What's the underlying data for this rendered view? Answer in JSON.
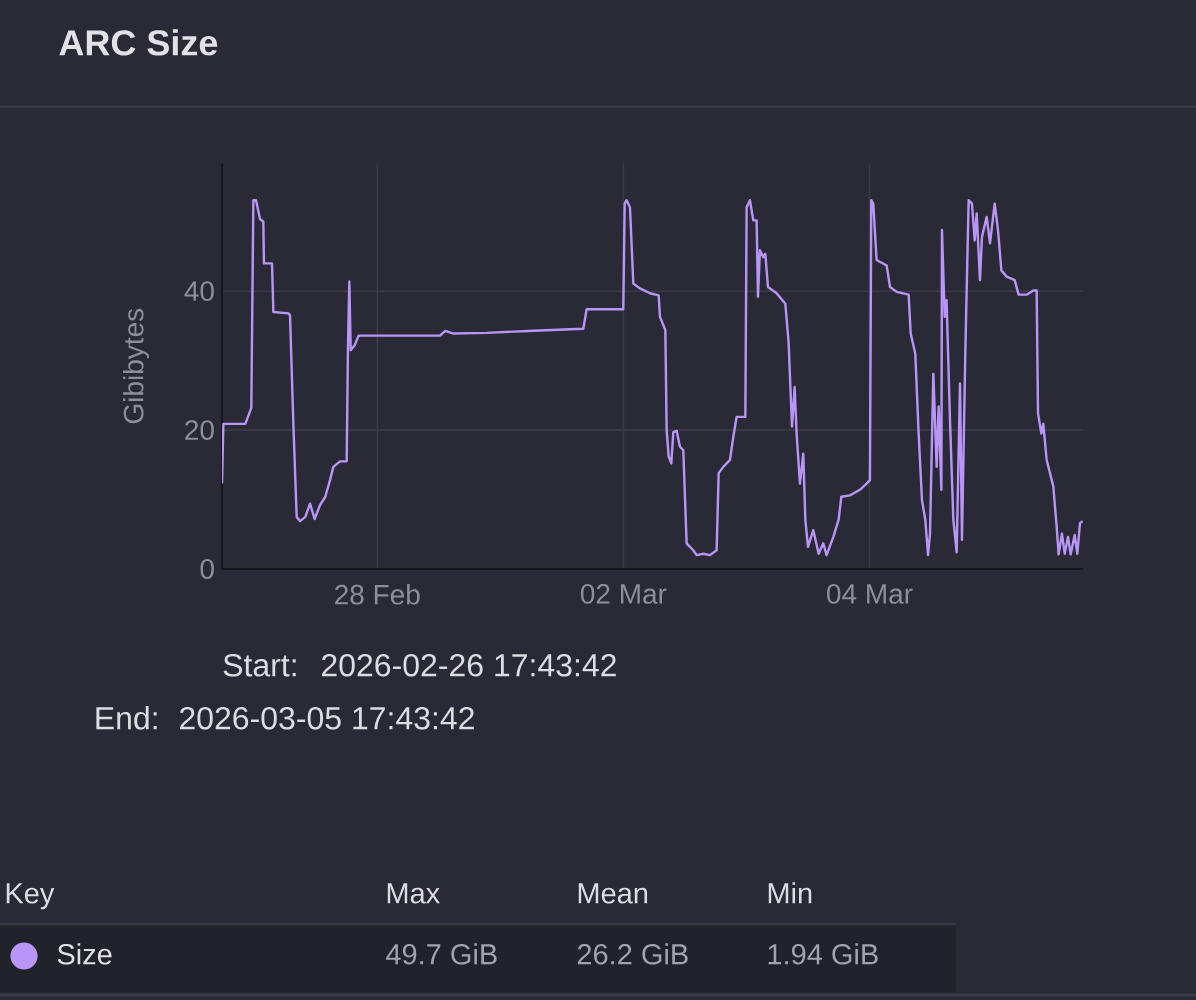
{
  "chart_data": {
    "type": "line",
    "title": "ARC Size",
    "ylabel": "Gibibytes",
    "legend_title": "Key",
    "legend": "bottom",
    "grid": true,
    "xlim": [
      "2026-02-26T17:43",
      "2026-03-05T17:43"
    ],
    "xticks": [
      {
        "value": "2026-02-28",
        "label": "28 Feb"
      },
      {
        "value": "2026-03-02",
        "label": "02 Mar"
      },
      {
        "value": "2026-03-04",
        "label": "04 Mar"
      }
    ],
    "ylim": [
      0,
      58.4
    ],
    "yticks": [
      0,
      20,
      40
    ],
    "annotations": [
      "Start:",
      "2026-02-26 17:43:42",
      "End:",
      "2026-03-05 17:43:42",
      "Max",
      "Mean",
      "Min",
      "49.7 GiB",
      "26.2 GiB",
      "1.94 GiB"
    ],
    "x": [
      "2026-02-26T17:43",
      "2026-02-26T17:59",
      "2026-02-26T22:16",
      "2026-02-26T23:26",
      "2026-02-26T23:50",
      "2026-02-27T00:21",
      "2026-02-27T01:08",
      "2026-02-27T01:47",
      "2026-02-27T01:54",
      "2026-02-27T03:28",
      "2026-02-27T03:44",
      "2026-02-27T06:43",
      "2026-02-27T06:59",
      "2026-02-27T07:38",
      "2026-02-27T08:17",
      "2026-02-27T08:56",
      "2026-02-27T09:58",
      "2026-02-27T10:53",
      "2026-02-27T11:47",
      "2026-02-27T12:50",
      "2026-02-27T13:52",
      "2026-02-27T14:47",
      "2026-02-27T15:26",
      "2026-02-27T16:44",
      "2026-02-27T18:02",
      "2026-02-27T18:17",
      "2026-02-27T18:33",
      "2026-02-27T18:49",
      "2026-02-27T19:35",
      "2026-02-27T20:22",
      "2026-02-28T12:14",
      "2026-02-28T13:16",
      "2026-02-28T14:50",
      "2026-02-28T21:20",
      "2026-03-01T06:26",
      "2026-03-01T16:11",
      "2026-03-01T16:50",
      "2026-03-01T23:59",
      "2026-03-02T00:15",
      "2026-03-02T00:38",
      "2026-03-02T01:17",
      "2026-03-02T01:41",
      "2026-03-02T01:56",
      "2026-03-02T03:14",
      "2026-03-02T05:11",
      "2026-03-02T06:53",
      "2026-03-02T07:08",
      "2026-03-02T08:11",
      "2026-03-02T08:26",
      "2026-03-02T08:50",
      "2026-03-02T09:21",
      "2026-03-02T09:44",
      "2026-03-02T10:23",
      "2026-03-02T11:02",
      "2026-03-02T11:41",
      "2026-03-02T12:20",
      "2026-03-02T13:38",
      "2026-03-02T14:17",
      "2026-03-02T15:35",
      "2026-03-02T16:53",
      "2026-03-02T18:11",
      "2026-03-02T18:35",
      "2026-03-02T19:29",
      "2026-03-02T20:47",
      "2026-03-02T21:26",
      "2026-03-02T22:05",
      "2026-03-02T23:47",
      "2026-03-03T00:02",
      "2026-03-03T00:41",
      "2026-03-03T01:20",
      "2026-03-03T01:59",
      "2026-03-03T02:15",
      "2026-03-03T02:38",
      "2026-03-03T03:17",
      "2026-03-03T03:41",
      "2026-03-03T04:12",
      "2026-03-03T05:53",
      "2026-03-03T07:35",
      "2026-03-03T08:14",
      "2026-03-03T08:53",
      "2026-03-03T09:24",
      "2026-03-03T09:47",
      "2026-03-03T10:26",
      "2026-03-03T11:05",
      "2026-03-03T11:29",
      "2026-03-03T12:00",
      "2026-03-03T13:02",
      "2026-03-03T14:05",
      "2026-03-03T14:59",
      "2026-03-03T15:38",
      "2026-03-03T16:56",
      "2026-03-03T17:59",
      "2026-03-03T18:30",
      "2026-03-03T20:11",
      "2026-03-03T22:08",
      "2026-03-03T23:26",
      "2026-03-04T00:05",
      "2026-03-04T00:21",
      "2026-03-04T00:44",
      "2026-03-04T01:23",
      "2026-03-04T03:21",
      "2026-03-04T04:00",
      "2026-03-04T05:18",
      "2026-03-04T07:38",
      "2026-03-04T08:02",
      "2026-03-04T08:56",
      "2026-03-04T09:35",
      "2026-03-04T10:14",
      "2026-03-04T10:53",
      "2026-03-04T11:25",
      "2026-03-04T11:48",
      "2026-03-04T12:27",
      "2026-03-04T13:06",
      "2026-03-04T13:29",
      "2026-03-04T14:01",
      "2026-03-04T14:08",
      "2026-03-04T14:40",
      "2026-03-04T15:02",
      "2026-03-04T15:42",
      "2026-03-04T16:21",
      "2026-03-04T17:00",
      "2026-03-04T17:39",
      "2026-03-04T18:02",
      "2026-03-04T18:41",
      "2026-03-04T19:20",
      "2026-03-04T19:59",
      "2026-03-04T20:31",
      "2026-03-04T20:54",
      "2026-03-04T21:33",
      "2026-03-04T21:56",
      "2026-03-04T22:51",
      "2026-03-04T23:30",
      "2026-03-05T00:25",
      "2026-03-05T01:04",
      "2026-03-05T01:43",
      "2026-03-05T02:45",
      "2026-03-05T04:19",
      "2026-03-05T05:05",
      "2026-03-05T06:39",
      "2026-03-05T07:57",
      "2026-03-05T08:36",
      "2026-03-05T08:52",
      "2026-03-05T09:31",
      "2026-03-05T09:54",
      "2026-03-05T10:33",
      "2026-03-05T11:51",
      "2026-03-05T12:30",
      "2026-03-05T12:53",
      "2026-03-05T13:32",
      "2026-03-05T14:04",
      "2026-03-05T14:43",
      "2026-03-05T15:14",
      "2026-03-05T16:01",
      "2026-03-05T16:32",
      "2026-03-05T17:03",
      "2026-03-05T17:34"
    ],
    "series": [
      {
        "name": "Size",
        "color": "#b995f7",
        "values": [
          12.3,
          20.9,
          20.9,
          23.2,
          53.1,
          53.1,
          50.4,
          50.0,
          44.0,
          44.0,
          37.0,
          36.8,
          36.5,
          20.9,
          7.5,
          6.9,
          7.5,
          9.4,
          7.2,
          9.2,
          10.4,
          12.8,
          14.7,
          15.5,
          15.5,
          32.0,
          41.4,
          31.5,
          32.2,
          33.6,
          33.6,
          34.3,
          33.9,
          34.0,
          34.3,
          34.6,
          37.4,
          37.4,
          52.6,
          53.1,
          52.1,
          45.4,
          41.1,
          40.4,
          39.7,
          39.4,
          36.3,
          34.4,
          20.0,
          16.2,
          15.2,
          19.7,
          19.9,
          17.6,
          17.1,
          3.7,
          2.7,
          2.0,
          2.2,
          2.0,
          2.7,
          13.8,
          14.7,
          15.7,
          19.0,
          21.9,
          21.9,
          52.1,
          53.1,
          50.2,
          50.2,
          39.2,
          45.9,
          44.9,
          45.4,
          40.6,
          39.7,
          38.2,
          32.5,
          20.5,
          26.2,
          19.5,
          12.3,
          16.6,
          7.1,
          3.2,
          5.6,
          2.2,
          3.7,
          2.0,
          4.6,
          7.1,
          10.4,
          10.6,
          11.4,
          12.3,
          12.8,
          53.1,
          52.6,
          44.5,
          43.7,
          40.6,
          39.9,
          39.5,
          33.9,
          31.0,
          19.5,
          9.9,
          7.1,
          2.0,
          5.1,
          28.1,
          14.7,
          23.4,
          11.4,
          48.8,
          36.3,
          38.7,
          21.4,
          7.1,
          2.4,
          26.7,
          4.2,
          31.0,
          53.1,
          52.6,
          47.3,
          51.2,
          41.6,
          47.8,
          50.7,
          46.9,
          52.6,
          48.8,
          43.0,
          42.1,
          41.6,
          39.5,
          39.5,
          40.1,
          40.1,
          22.4,
          19.5,
          20.9,
          15.7,
          11.9,
          6.1,
          2.1,
          5.1,
          2.2,
          4.6,
          2.1,
          4.9,
          2.2,
          6.6,
          6.9
        ]
      }
    ]
  }
}
